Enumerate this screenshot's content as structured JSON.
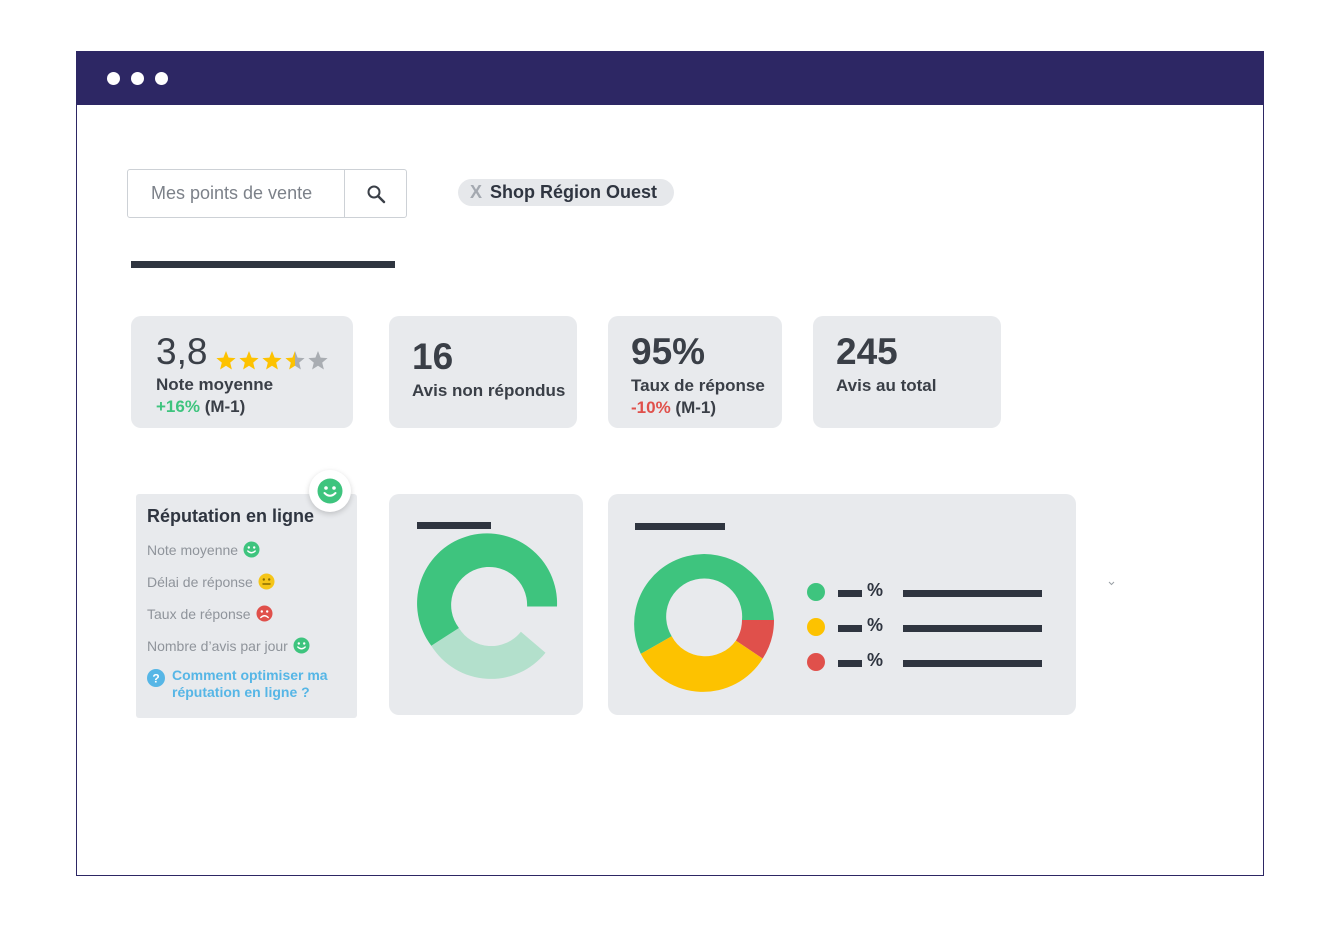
{
  "search": {
    "placeholder": "Mes points de vente"
  },
  "filter_chip": {
    "remove": "X",
    "label": "Shop Région Ouest"
  },
  "kpis": {
    "rating": {
      "value": "3,8",
      "label": "Note moyenne",
      "trend": "+16%",
      "period": "(M-1)",
      "stars_filled": 3.5,
      "stars_total": 5
    },
    "unanswered": {
      "value": "16",
      "label": "Avis non répondus"
    },
    "response_rate": {
      "value": "95%",
      "label": "Taux de réponse",
      "trend": "-10%",
      "period": "(M-1)"
    },
    "total": {
      "value": "245",
      "label": "Avis au total"
    }
  },
  "reputation": {
    "title": "Réputation en ligne",
    "items": [
      {
        "label": "Note moyenne",
        "icon": "happy-face-icon",
        "color": "#3ec47e"
      },
      {
        "label": "Délai de réponse",
        "icon": "neutral-face-icon",
        "color": "#f5c518"
      },
      {
        "label": "Taux de réponse",
        "icon": "sad-face-icon",
        "color": "#e0504b"
      },
      {
        "label": "Nombre d’avis par jour",
        "icon": "happy-face-icon",
        "color": "#3ec47e"
      }
    ],
    "help_icon": "?",
    "help_link": "Comment optimiser ma réputation en ligne ?"
  },
  "donut_legend": {
    "pct_symbol": "%"
  },
  "colors": {
    "titlebar": "#2d2764",
    "green": "#3ec47e",
    "light_green": "#b3e0cc",
    "yellow": "#fdc200",
    "red": "#e0504b",
    "card": "#e8eaed"
  }
}
